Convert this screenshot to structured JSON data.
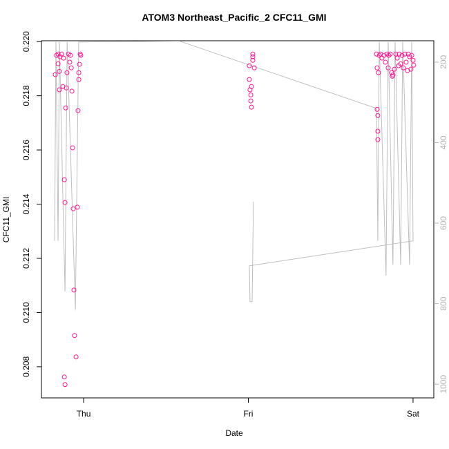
{
  "chart_data": {
    "type": "scatter",
    "title": "ATOM3 Northeast_Pacific_2 CFC11_GMI",
    "x_label": "Date",
    "y_label": "CFC11_GMI",
    "xlim": [
      -0.256,
      2.126
    ],
    "xticks": [
      {
        "value": 0,
        "label": "Thu"
      },
      {
        "value": 1,
        "label": "Fri"
      },
      {
        "value": 2,
        "label": "Sat"
      }
    ],
    "ylim": [
      0.20685,
      0.22003
    ],
    "yticks": [
      {
        "value": 0.208,
        "label": "0.208"
      },
      {
        "value": 0.21,
        "label": "0.210"
      },
      0.212,
      0.214,
      0.216,
      0.218,
      {
        "value": 0.22,
        "label": "0.220"
      }
    ],
    "y2lim": [
      1034,
      147
    ],
    "y2ticks": [
      200,
      400,
      600,
      800,
      1000
    ],
    "series": [
      {
        "type": "line",
        "axis": "y2",
        "color": "#bebebe",
        "x": [
          -0.176,
          -0.168,
          -0.155,
          -0.147,
          -0.113,
          -0.1,
          -0.05,
          -0.03,
          0.583,
          1.778,
          1.786,
          1.795,
          1.836,
          1.849,
          1.878,
          1.891,
          1.925,
          1.937,
          1.979,
          1.992,
          2.0,
          1.006,
          1.01,
          1.023,
          1.031
        ],
        "values": [
          644,
          150,
          644,
          150,
          770,
          150,
          815,
          150,
          148,
          315,
          644,
          150,
          730,
          150,
          704,
          150,
          704,
          150,
          704,
          150,
          644,
          706,
          795,
          795,
          547
        ]
      },
      {
        "type": "scatter",
        "color": "#ff1493",
        "x": [
          -0.172,
          -0.164,
          -0.155,
          -0.155,
          -0.147,
          -0.147,
          -0.143,
          -0.134,
          -0.126,
          -0.122,
          -0.117,
          -0.117,
          -0.113,
          -0.113,
          -0.109,
          -0.105,
          -0.101,
          -0.092,
          -0.084,
          -0.08,
          -0.075,
          -0.071,
          -0.067,
          -0.063,
          -0.059,
          -0.055,
          -0.046,
          -0.038,
          -0.034,
          -0.029,
          -0.029,
          -0.025,
          -0.021,
          -0.017,
          1.006,
          1.006,
          1.01,
          1.015,
          1.019,
          1.015,
          1.019,
          1.027,
          1.027,
          1.027,
          1.036,
          1.778,
          1.782,
          1.782,
          1.786,
          1.786,
          1.786,
          1.79,
          1.795,
          1.803,
          1.811,
          1.824,
          1.832,
          1.841,
          1.849,
          1.853,
          1.862,
          1.87,
          1.874,
          1.878,
          1.887,
          1.895,
          1.904,
          1.912,
          1.916,
          1.925,
          1.933,
          1.941,
          1.95,
          1.958,
          1.966,
          1.971,
          1.979,
          1.987,
          1.992,
          2.0,
          2.004
        ],
        "values": [
          0.21878,
          0.21949,
          0.21954,
          0.21918,
          0.21822,
          0.2189,
          0.21944,
          0.21954,
          0.21834,
          0.21939,
          0.2149,
          0.20762,
          0.21406,
          0.20734,
          0.21755,
          0.21829,
          0.21885,
          0.21954,
          0.21924,
          0.21949,
          0.21903,
          0.21817,
          0.21608,
          0.21383,
          0.21083,
          0.20915,
          0.20836,
          0.21389,
          0.21745,
          0.2186,
          0.21885,
          0.21916,
          0.21954,
          0.21949,
          0.21911,
          0.2186,
          0.21822,
          0.21803,
          0.21834,
          0.21781,
          0.21758,
          0.21944,
          0.21954,
          0.21931,
          0.21903,
          0.21954,
          0.21903,
          0.2175,
          0.21727,
          0.21669,
          0.21638,
          0.21885,
          0.21949,
          0.21954,
          0.21939,
          0.21949,
          0.21924,
          0.21954,
          0.21903,
          0.21949,
          0.21954,
          0.21885,
          0.21872,
          0.21877,
          0.21898,
          0.21954,
          0.21939,
          0.21911,
          0.21954,
          0.21918,
          0.21949,
          0.21903,
          0.21954,
          0.21924,
          0.21893,
          0.21954,
          0.21944,
          0.21898,
          0.21949,
          0.21931,
          0.21913
        ]
      }
    ]
  }
}
